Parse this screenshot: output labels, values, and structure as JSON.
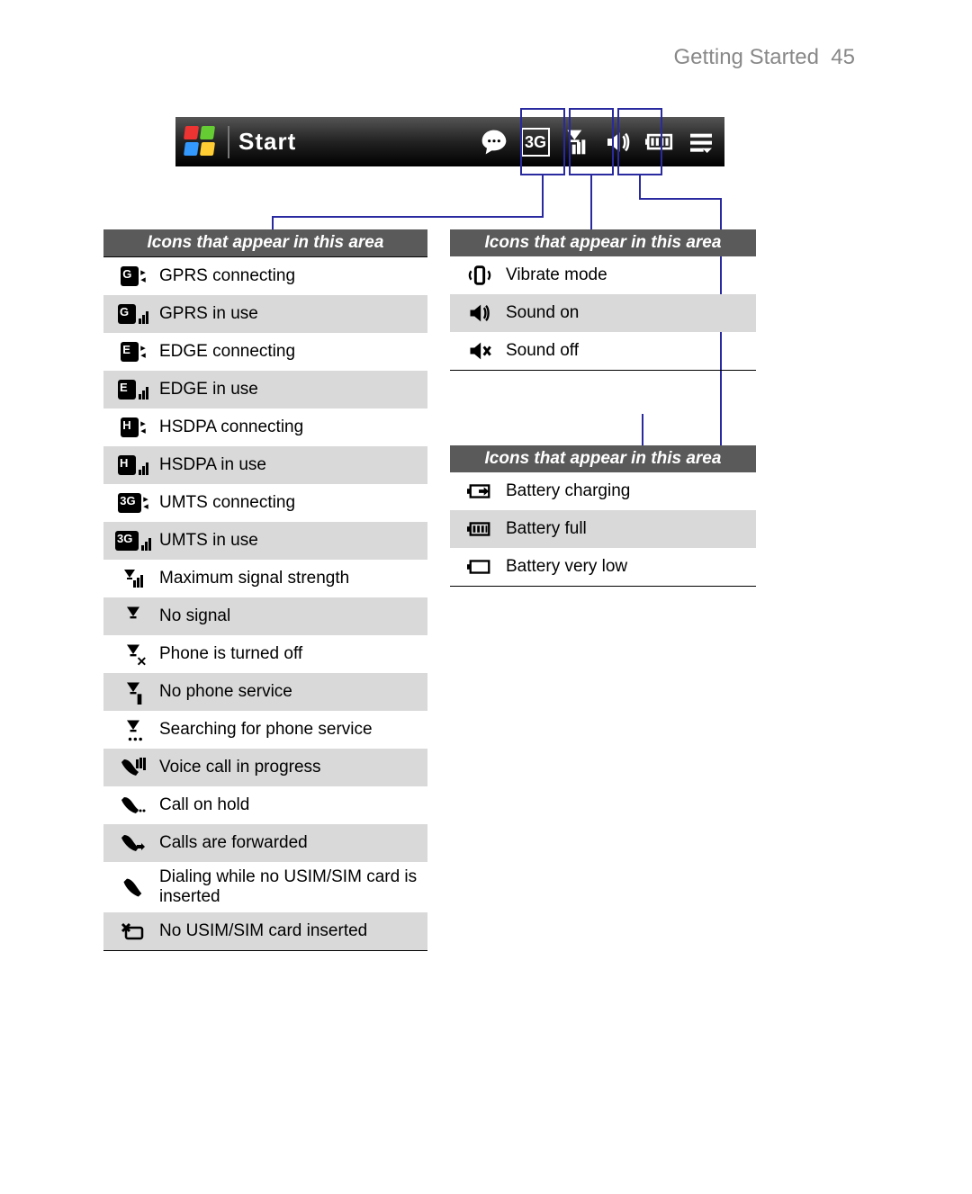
{
  "header": {
    "section": "Getting Started",
    "page": "45"
  },
  "startbar": {
    "label": "Start"
  },
  "tables": {
    "left": {
      "title": "Icons that appear in this area",
      "rows": [
        {
          "label": "GPRS connecting",
          "icon": "gprs-connecting"
        },
        {
          "label": "GPRS in use",
          "icon": "gprs-in-use"
        },
        {
          "label": "EDGE connecting",
          "icon": "edge-connecting"
        },
        {
          "label": "EDGE in use",
          "icon": "edge-in-use"
        },
        {
          "label": "HSDPA connecting",
          "icon": "hsdpa-connecting"
        },
        {
          "label": "HSDPA in use",
          "icon": "hsdpa-in-use"
        },
        {
          "label": "UMTS connecting",
          "icon": "umts-connecting"
        },
        {
          "label": "UMTS in use",
          "icon": "umts-in-use"
        },
        {
          "label": "Maximum signal strength",
          "icon": "signal-max"
        },
        {
          "label": "No signal",
          "icon": "no-signal"
        },
        {
          "label": "Phone is turned off",
          "icon": "phone-off"
        },
        {
          "label": "No phone service",
          "icon": "no-service"
        },
        {
          "label": "Searching for phone service",
          "icon": "searching"
        },
        {
          "label": "Voice call in progress",
          "icon": "voice-call"
        },
        {
          "label": "Call on hold",
          "icon": "call-hold"
        },
        {
          "label": "Calls are forwarded",
          "icon": "call-forward"
        },
        {
          "label": "Dialing while no USIM/SIM card is inserted",
          "icon": "no-sim-dial"
        },
        {
          "label": "No USIM/SIM card inserted",
          "icon": "no-sim"
        }
      ]
    },
    "right1": {
      "title": "Icons that appear in this area",
      "rows": [
        {
          "label": "Vibrate mode",
          "icon": "vibrate"
        },
        {
          "label": "Sound on",
          "icon": "sound-on"
        },
        {
          "label": "Sound off",
          "icon": "sound-off"
        }
      ]
    },
    "right2": {
      "title": "Icons that appear in this area",
      "rows": [
        {
          "label": "Battery charging",
          "icon": "batt-charging"
        },
        {
          "label": "Battery full",
          "icon": "batt-full"
        },
        {
          "label": "Battery very low",
          "icon": "batt-low"
        }
      ]
    }
  },
  "colors": {
    "header_text": "#888888",
    "callout": "#2a2aa0",
    "table_header_bg": "#5a5a5a",
    "row_alt_bg": "#d9d9d9"
  }
}
